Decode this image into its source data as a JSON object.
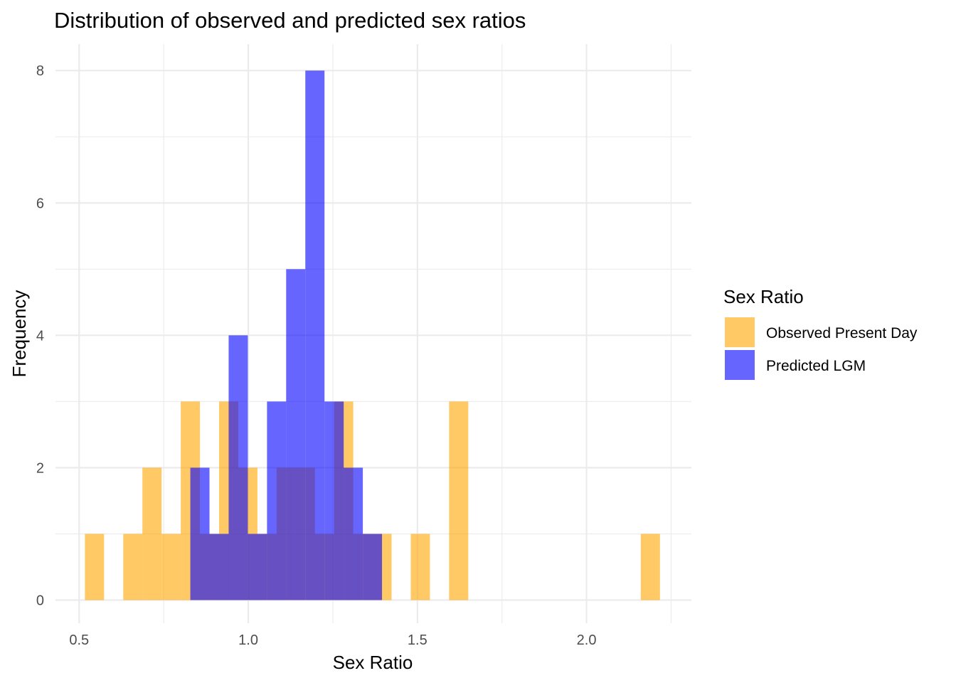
{
  "chart_data": {
    "type": "bar",
    "title": "Distribution of observed and predicted sex ratios",
    "xlabel": "Sex Ratio",
    "ylabel": "Frequency",
    "xlim": [
      0.43,
      2.31
    ],
    "ylim": [
      -0.35,
      8.4
    ],
    "x_ticks": [
      0.5,
      1.0,
      1.5,
      2.0
    ],
    "x_tick_labels": [
      "0.5",
      "1.0",
      "1.5",
      "2.0"
    ],
    "x_minor_ticks": [
      0.75,
      1.25,
      1.75,
      2.25
    ],
    "y_ticks": [
      0,
      2,
      4,
      6,
      8
    ],
    "y_tick_labels": [
      "0",
      "2",
      "4",
      "6",
      "8"
    ],
    "y_minor_ticks": [
      1,
      3,
      5,
      7
    ],
    "bin_width": 0.0567,
    "grid": true,
    "legend": {
      "title": "Sex Ratio",
      "position": "right"
    },
    "series": [
      {
        "name": "Observed Present Day",
        "color": "#FFA500",
        "opacity": 0.6,
        "x": [
          0.5453,
          0.6587,
          0.7153,
          0.772,
          0.8287,
          0.8853,
          0.942,
          0.9987,
          1.0553,
          1.112,
          1.1687,
          1.2253,
          1.282,
          1.3387,
          1.3953,
          1.5087,
          1.622,
          2.1887
        ],
        "values": [
          1,
          1,
          2,
          1,
          3,
          1,
          3,
          2,
          1,
          2,
          2,
          1,
          3,
          1,
          1,
          1,
          3,
          1
        ]
      },
      {
        "name": "Predicted LGM",
        "color": "#0000FF",
        "opacity": 0.6,
        "x": [
          0.857,
          0.9137,
          0.9703,
          1.027,
          1.0837,
          1.1403,
          1.197,
          1.2537,
          1.3103,
          1.367
        ],
        "values": [
          2,
          1,
          4,
          1,
          3,
          5,
          8,
          3,
          2,
          1
        ]
      }
    ]
  }
}
